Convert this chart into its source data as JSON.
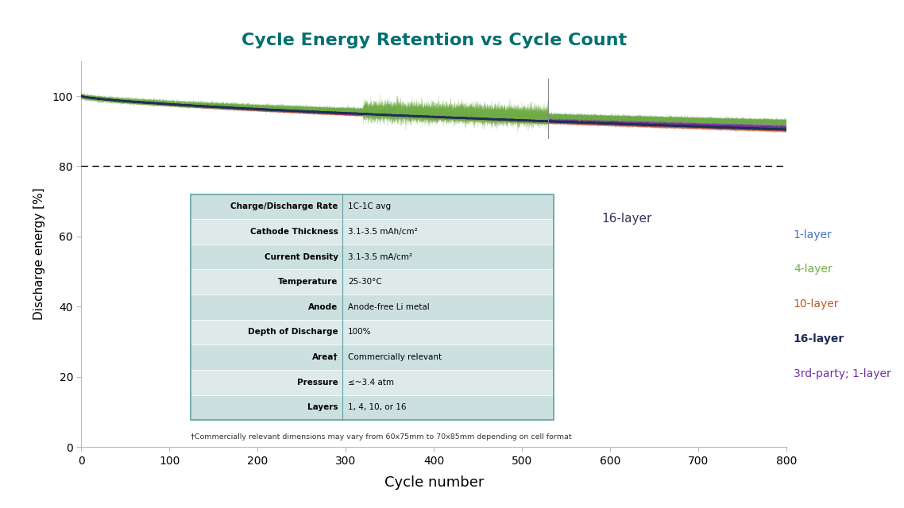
{
  "title": "Cycle Energy Retention vs Cycle Count",
  "title_color": "#007070",
  "xlabel": "Cycle number",
  "ylabel": "Discharge energy [%]",
  "xlim": [
    0,
    800
  ],
  "ylim": [
    0,
    110
  ],
  "yticks": [
    0,
    20,
    40,
    60,
    80,
    100
  ],
  "xticks": [
    0,
    100,
    200,
    300,
    400,
    500,
    600,
    700,
    800
  ],
  "dashed_line_y": 80,
  "vertical_line_x": 530,
  "vertical_line_label": "16-layer",
  "colors": {
    "1-layer": "#4472c4",
    "4-layer": "#70ad47",
    "10-layer": "#c05a28",
    "16-layer": "#1f2d5a",
    "3rd-party": "#7030a0"
  },
  "legend_labels": [
    "1-layer",
    "4-layer",
    "10-layer",
    "16-layer",
    "3rd-party; 1-layer"
  ],
  "legend_colors": [
    "#4472c4",
    "#70ad47",
    "#c05a28",
    "#1f2d5a",
    "#7030a0"
  ],
  "table_rows": [
    [
      "Charge/Discharge Rate",
      "1C-1C avg"
    ],
    [
      "Cathode Thickness",
      "3.1-3.5 mAh/cm²"
    ],
    [
      "Current Density",
      "3.1-3.5 mA/cm²"
    ],
    [
      "Temperature",
      "25-30°C"
    ],
    [
      "Anode",
      "Anode-free Li metal"
    ],
    [
      "Depth of Discharge",
      "100%"
    ],
    [
      "Area†",
      "Commercially relevant"
    ],
    [
      "Pressure",
      "≤~3.4 atm"
    ],
    [
      "Layers",
      "1, 4, 10, or 16"
    ]
  ],
  "footnote": "†Commercially relevant dimensions may vary from 60x75mm to 70x85mm depending on cell format",
  "background_color": "#ffffff"
}
